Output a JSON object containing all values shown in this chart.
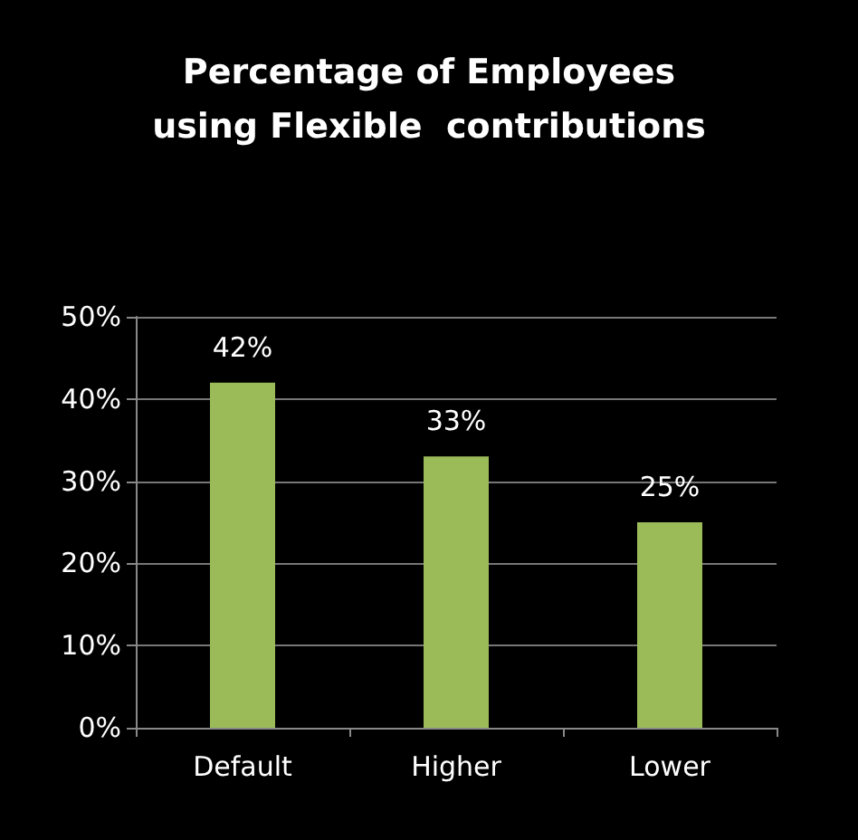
{
  "chart_data": {
    "type": "bar",
    "title": "Percentage of Employees\nusing Flexible  contributions",
    "categories": [
      "Default",
      "Higher",
      "Lower"
    ],
    "values": [
      42,
      33,
      25
    ],
    "value_labels": [
      "42%",
      "33%",
      "25%"
    ],
    "color": "#9bbb59",
    "ylim": [
      0,
      50
    ],
    "yticks": [
      {
        "value": 0,
        "label": "0%"
      },
      {
        "value": 10,
        "label": "10%"
      },
      {
        "value": 20,
        "label": "20%"
      },
      {
        "value": 30,
        "label": "30%"
      },
      {
        "value": 40,
        "label": "40%"
      },
      {
        "value": 50,
        "label": "50%"
      }
    ],
    "grid": "y"
  }
}
